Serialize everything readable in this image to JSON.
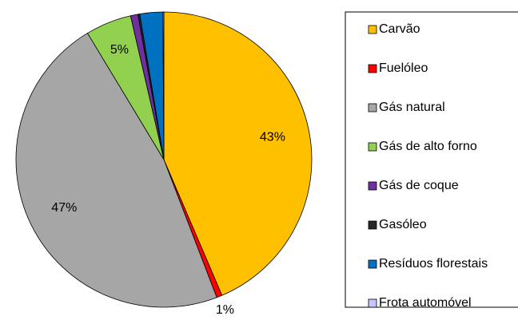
{
  "chart_data": {
    "type": "pie",
    "categories": [
      "Carvão",
      "Fuelóleo",
      "Gás natural",
      "Gás de alto forno",
      "Gás de coque",
      "Gasóleo",
      "Resíduos florestais",
      "Frota automóvel"
    ],
    "values": [
      43.4,
      0.6,
      47,
      5,
      0.8,
      0.2,
      2.5,
      0.1
    ],
    "value_labels": [
      "43%",
      "1%",
      "47%",
      "5%",
      null,
      null,
      null,
      null
    ],
    "colors": [
      "#ffc000",
      "#ff0000",
      "#a6a6a6",
      "#92d050",
      "#7030a0",
      "#262626",
      "#0070c0",
      "#c5c5ff"
    ],
    "legend": "right"
  }
}
